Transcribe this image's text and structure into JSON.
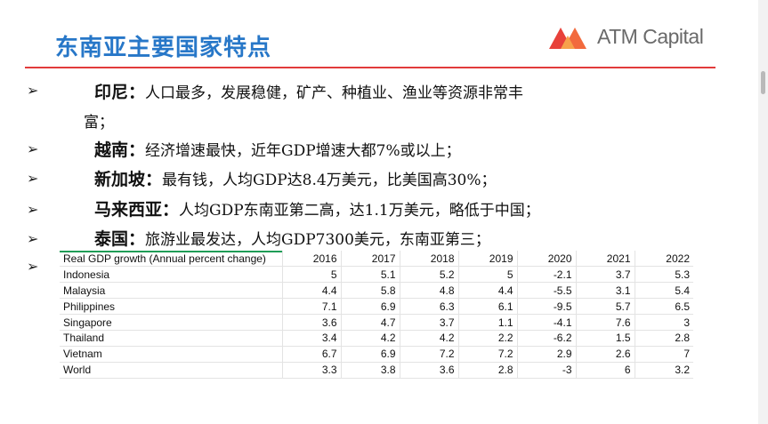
{
  "slide": {
    "title": "东南亚主要国家特点",
    "logo_text": "ATM Capital"
  },
  "bullets": [
    {
      "symbol": "➢",
      "country": "印尼：",
      "text": "人口最多，发展稳健，矿产、种植业、渔业等资源非常丰",
      "text_cont": "富；"
    },
    {
      "symbol": "➢",
      "country": "越南：",
      "text": "经济增速最快，近年GDP增速大都7%或以上；"
    },
    {
      "symbol": "➢",
      "country": "新加坡：",
      "text": "最有钱，人均GDP达8.4万美元，比美国高30%；"
    },
    {
      "symbol": "➢",
      "country": "马来西亚：",
      "text": "人均GDP东南亚第二高，达1.1万美元，略低于中国；"
    },
    {
      "symbol": "➢",
      "country": "泰国：",
      "text": "旅游业最发达，人均GDP7300美元，东南亚第三；"
    },
    {
      "symbol": "➢"
    }
  ],
  "table": {
    "header": "Real GDP growth (Annual percent change)",
    "years": [
      "2016",
      "2017",
      "2018",
      "2019",
      "2020",
      "2021",
      "2022"
    ],
    "rows": [
      {
        "name": "Indonesia",
        "values": [
          "5",
          "5.1",
          "5.2",
          "5",
          "-2.1",
          "3.7",
          "5.3"
        ]
      },
      {
        "name": "Malaysia",
        "values": [
          "4.4",
          "5.8",
          "4.8",
          "4.4",
          "-5.5",
          "3.1",
          "5.4"
        ]
      },
      {
        "name": "Philippines",
        "values": [
          "7.1",
          "6.9",
          "6.3",
          "6.1",
          "-9.5",
          "5.7",
          "6.5"
        ]
      },
      {
        "name": "Singapore",
        "values": [
          "3.6",
          "4.7",
          "3.7",
          "1.1",
          "-4.1",
          "7.6",
          "3"
        ]
      },
      {
        "name": "Thailand",
        "values": [
          "3.4",
          "4.2",
          "4.2",
          "2.2",
          "-6.2",
          "1.5",
          "2.8"
        ]
      },
      {
        "name": "Vietnam",
        "values": [
          "6.7",
          "6.9",
          "7.2",
          "7.2",
          "2.9",
          "2.6",
          "7"
        ]
      },
      {
        "name": "World",
        "values": [
          "3.3",
          "3.8",
          "3.6",
          "2.8",
          "-3",
          "6",
          "3.2"
        ]
      }
    ]
  },
  "colors": {
    "title": "#2777c8",
    "rule": "#e23b3b",
    "logo_orange": "#f26a3d",
    "logo_red": "#e8413a",
    "table_accent": "#1f9d57"
  }
}
